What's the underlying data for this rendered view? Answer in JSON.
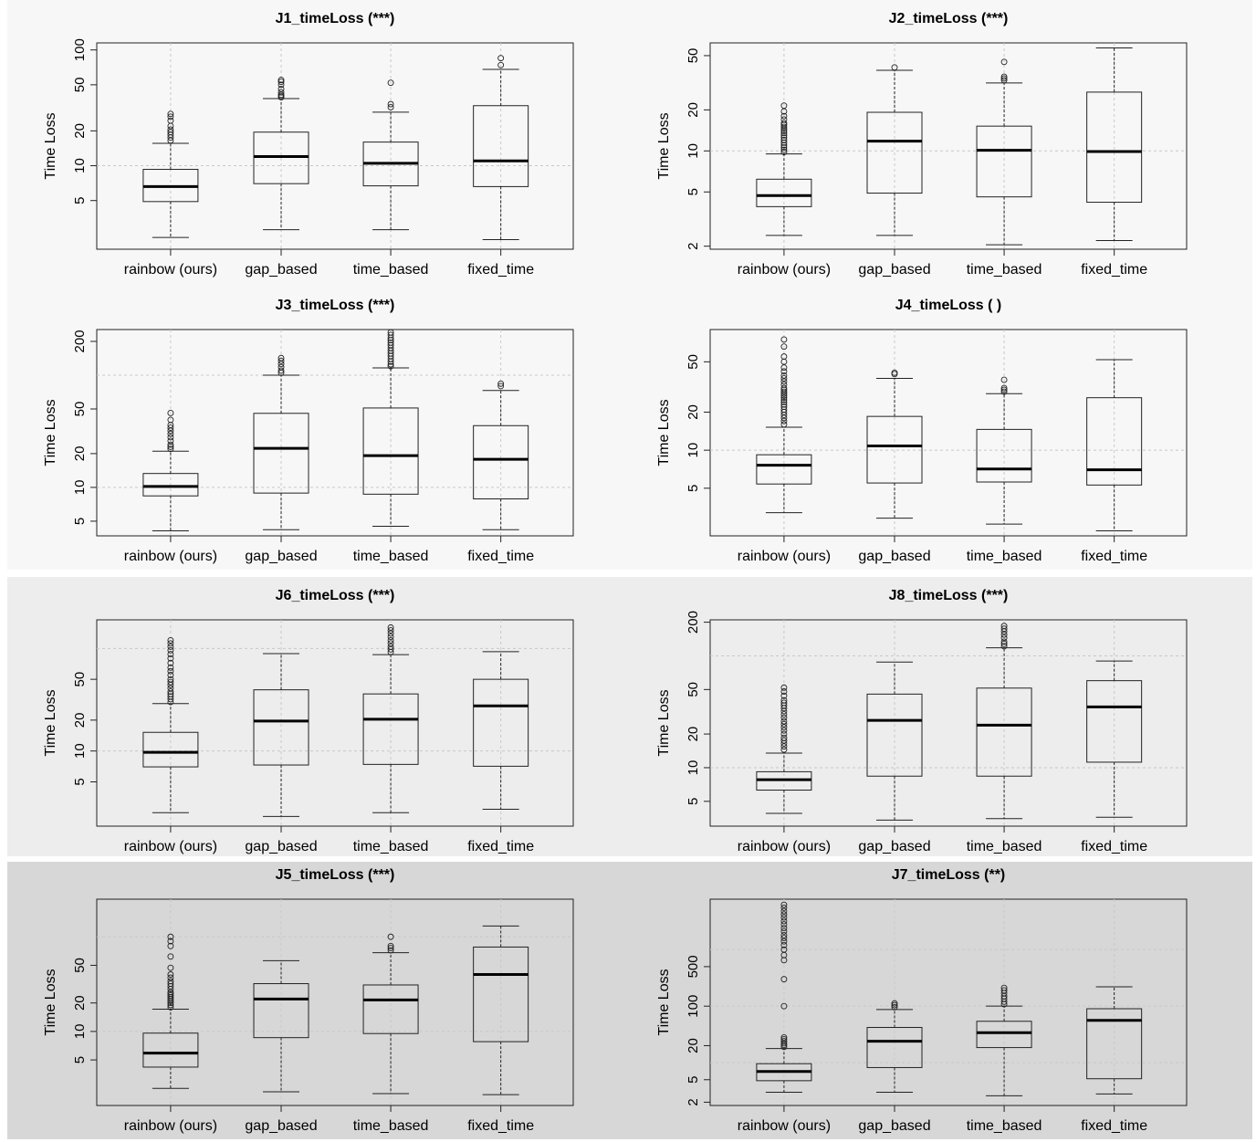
{
  "figure": {
    "ylabel": "Time Loss",
    "categories": [
      "rainbow (ours)",
      "gap_based",
      "time_based",
      "fixed_time"
    ],
    "band_colors": [
      "#f7f7f7",
      "#ededed",
      "#d7d7d7"
    ]
  },
  "chart_data": [
    {
      "type": "box",
      "title": "J1_timeLoss (***)",
      "ylabel": "Time Loss",
      "categories": [
        "rainbow (ours)",
        "gap_based",
        "time_based",
        "fixed_time"
      ],
      "yscale": "log",
      "ylim": [
        1.9,
        115
      ],
      "yticks": [
        5,
        10,
        20,
        50,
        100
      ],
      "hgrid": [
        10
      ],
      "boxes": [
        {
          "whislo": 2.4,
          "q1": 4.9,
          "med": 6.6,
          "q3": 9.3,
          "whishi": 15.6,
          "outliers": [
            16.5,
            17.5,
            18.5,
            19.5,
            20.5,
            22,
            24.5,
            26.5,
            28
          ]
        },
        {
          "whislo": 2.8,
          "q1": 7.0,
          "med": 12.0,
          "q3": 19.5,
          "whishi": 38,
          "outliers": [
            39,
            40,
            41,
            43,
            46,
            50,
            53,
            55
          ]
        },
        {
          "whislo": 2.8,
          "q1": 6.7,
          "med": 10.5,
          "q3": 16.0,
          "whishi": 29,
          "outliers": [
            32,
            34,
            52
          ]
        },
        {
          "whislo": 2.3,
          "q1": 6.6,
          "med": 11.0,
          "q3": 33,
          "whishi": 68,
          "outliers": [
            74,
            85
          ]
        }
      ]
    },
    {
      "type": "box",
      "title": "J2_timeLoss (***)",
      "ylabel": "Time Loss",
      "categories": [
        "rainbow (ours)",
        "gap_based",
        "time_based",
        "fixed_time"
      ],
      "yscale": "log",
      "ylim": [
        1.9,
        62
      ],
      "yticks": [
        2,
        5,
        10,
        20,
        50
      ],
      "hgrid": [
        10
      ],
      "boxes": [
        {
          "whislo": 2.4,
          "q1": 3.9,
          "med": 4.7,
          "q3": 6.2,
          "whishi": 9.5,
          "outliers": [
            9.8,
            10.2,
            10.6,
            11,
            11.5,
            12,
            12.5,
            13,
            13.5,
            14,
            14.5,
            15,
            15.5,
            16,
            17,
            18,
            19.5,
            21.5
          ]
        },
        {
          "whislo": 2.4,
          "q1": 4.9,
          "med": 11.8,
          "q3": 19.2,
          "whishi": 39,
          "outliers": [
            41
          ]
        },
        {
          "whislo": 2.05,
          "q1": 4.6,
          "med": 10.1,
          "q3": 15.2,
          "whishi": 31.5,
          "outliers": [
            33,
            34,
            35,
            45
          ]
        },
        {
          "whislo": 2.2,
          "q1": 4.2,
          "med": 9.9,
          "q3": 27,
          "whishi": 57,
          "outliers": []
        }
      ]
    },
    {
      "type": "box",
      "title": "J3_timeLoss (***)",
      "ylabel": "Time Loss",
      "categories": [
        "rainbow (ours)",
        "gap_based",
        "time_based",
        "fixed_time"
      ],
      "yscale": "log",
      "ylim": [
        3.7,
        255
      ],
      "yticks": [
        5,
        10,
        20,
        50,
        200
      ],
      "hgrid": [
        10,
        100
      ],
      "boxes": [
        {
          "whislo": 4.1,
          "q1": 8.4,
          "med": 10.2,
          "q3": 13.3,
          "whishi": 21,
          "outliers": [
            22,
            23,
            24,
            26,
            28,
            30,
            32,
            34,
            36,
            40,
            46
          ]
        },
        {
          "whislo": 4.2,
          "q1": 8.9,
          "med": 22.3,
          "q3": 45.7,
          "whishi": 100,
          "outliers": [
            105,
            110,
            118,
            126,
            134,
            142
          ]
        },
        {
          "whislo": 4.5,
          "q1": 8.7,
          "med": 19.2,
          "q3": 51,
          "whishi": 116,
          "outliers": [
            120,
            125,
            132,
            140,
            148,
            156,
            165,
            175,
            185,
            195,
            205,
            215,
            228,
            240
          ]
        },
        {
          "whislo": 4.2,
          "q1": 7.9,
          "med": 17.8,
          "q3": 35.5,
          "whishi": 73,
          "outliers": [
            80,
            84
          ]
        }
      ]
    },
    {
      "type": "box",
      "title": "J4_timeLoss ( )",
      "ylabel": "Time Loss",
      "categories": [
        "rainbow (ours)",
        "gap_based",
        "time_based",
        "fixed_time"
      ],
      "yscale": "log",
      "ylim": [
        2.1,
        90
      ],
      "yticks": [
        5,
        10,
        20,
        50
      ],
      "hgrid": [
        10
      ],
      "boxes": [
        {
          "whislo": 3.2,
          "q1": 5.4,
          "med": 7.6,
          "q3": 9.2,
          "whishi": 15.2,
          "outliers": [
            16,
            17,
            18,
            19,
            20,
            21,
            22,
            23,
            24,
            25,
            26,
            27,
            28,
            29,
            30,
            31,
            33,
            35,
            37,
            39,
            42,
            45,
            50,
            55,
            66,
            75
          ]
        },
        {
          "whislo": 2.9,
          "q1": 5.5,
          "med": 10.8,
          "q3": 18.5,
          "whishi": 37,
          "outliers": [
            40,
            41
          ]
        },
        {
          "whislo": 2.6,
          "q1": 5.6,
          "med": 7.1,
          "q3": 14.6,
          "whishi": 28,
          "outliers": [
            29,
            30,
            31,
            36
          ]
        },
        {
          "whislo": 2.3,
          "q1": 5.3,
          "med": 7.0,
          "q3": 26,
          "whishi": 52,
          "outliers": []
        }
      ]
    },
    {
      "type": "box",
      "title": "J6_timeLoss (***)",
      "ylabel": "Time Loss",
      "categories": [
        "rainbow (ours)",
        "gap_based",
        "time_based",
        "fixed_time"
      ],
      "yscale": "log",
      "ylim": [
        1.85,
        190
      ],
      "yticks": [
        5,
        10,
        20,
        50
      ],
      "hgrid": [
        10,
        100
      ],
      "boxes": [
        {
          "whislo": 2.5,
          "q1": 7.0,
          "med": 9.7,
          "q3": 15.2,
          "whishi": 29,
          "outliers": [
            30,
            32,
            34,
            36,
            38,
            41,
            44,
            47,
            50,
            55,
            60,
            65,
            72,
            80,
            88,
            96,
            104,
            112,
            120
          ]
        },
        {
          "whislo": 2.3,
          "q1": 7.3,
          "med": 19.6,
          "q3": 39.5,
          "whishi": 89,
          "outliers": []
        },
        {
          "whislo": 2.5,
          "q1": 7.4,
          "med": 20.4,
          "q3": 36,
          "whishi": 87,
          "outliers": [
            92,
            98,
            104,
            112,
            120,
            130,
            140,
            150,
            160
          ]
        },
        {
          "whislo": 2.7,
          "q1": 7.1,
          "med": 27.5,
          "q3": 50,
          "whishi": 93,
          "outliers": []
        }
      ]
    },
    {
      "type": "box",
      "title": "J8_timeLoss (***)",
      "ylabel": "Time Loss",
      "categories": [
        "rainbow (ours)",
        "gap_based",
        "time_based",
        "fixed_time"
      ],
      "yscale": "log",
      "ylim": [
        3.0,
        210
      ],
      "yticks": [
        5,
        10,
        20,
        50,
        200
      ],
      "hgrid": [
        10,
        100
      ],
      "boxes": [
        {
          "whislo": 3.9,
          "q1": 6.3,
          "med": 7.8,
          "q3": 9.2,
          "whishi": 13.5,
          "outliers": [
            14.5,
            15.5,
            16.5,
            17.5,
            18.5,
            20,
            21.5,
            23,
            24.5,
            26,
            28,
            30,
            32,
            34,
            36,
            38,
            40,
            44,
            48,
            52
          ]
        },
        {
          "whislo": 3.4,
          "q1": 8.4,
          "med": 26.5,
          "q3": 45.5,
          "whishi": 88,
          "outliers": []
        },
        {
          "whislo": 3.5,
          "q1": 8.4,
          "med": 24,
          "q3": 51.5,
          "whishi": 118,
          "outliers": [
            122,
            128,
            134,
            145,
            155,
            165,
            175,
            185
          ]
        },
        {
          "whislo": 3.6,
          "q1": 11.2,
          "med": 35,
          "q3": 60,
          "whishi": 90,
          "outliers": []
        }
      ]
    },
    {
      "type": "box",
      "title": "J5_timeLoss (***)",
      "ylabel": "Time Loss",
      "categories": [
        "rainbow (ours)",
        "gap_based",
        "time_based",
        "fixed_time"
      ],
      "yscale": "log",
      "ylim": [
        1.65,
        250
      ],
      "yticks": [
        5,
        10,
        20,
        50
      ],
      "hgrid": [
        10,
        100
      ],
      "boxes": [
        {
          "whislo": 2.5,
          "q1": 4.2,
          "med": 5.9,
          "q3": 9.6,
          "whishi": 17.2,
          "outliers": [
            18,
            19,
            20,
            21,
            22,
            23,
            24,
            25,
            26,
            28,
            30,
            32,
            34,
            37,
            40,
            47,
            62,
            80,
            90,
            100
          ]
        },
        {
          "whislo": 2.3,
          "q1": 8.6,
          "med": 22,
          "q3": 32,
          "whishi": 56,
          "outliers": []
        },
        {
          "whislo": 2.2,
          "q1": 9.5,
          "med": 21.5,
          "q3": 31,
          "whishi": 68,
          "outliers": [
            72,
            76,
            80,
            100
          ]
        },
        {
          "whislo": 2.15,
          "q1": 7.8,
          "med": 40,
          "q3": 78,
          "whishi": 130,
          "outliers": []
        }
      ]
    },
    {
      "type": "box",
      "title": "J7_timeLoss (**)",
      "ylabel": "Time Loss",
      "categories": [
        "rainbow (ours)",
        "gap_based",
        "time_based",
        "fixed_time"
      ],
      "yscale": "log",
      "ylim": [
        1.75,
        7800
      ],
      "yticks": [
        2,
        5,
        20,
        100,
        500
      ],
      "hgrid": [
        10,
        100,
        1000
      ],
      "boxes": [
        {
          "whislo": 3.0,
          "q1": 4.8,
          "med": 7.0,
          "q3": 9.6,
          "whishi": 17.8,
          "outliers": [
            19,
            20.5,
            22,
            24,
            26,
            28,
            100,
            300,
            650,
            800,
            1000,
            1200,
            1400,
            1600,
            1800,
            2100,
            2400,
            2800,
            3200,
            3700,
            4200,
            4800,
            5500,
            6200
          ]
        },
        {
          "whislo": 3.0,
          "q1": 8.2,
          "med": 24,
          "q3": 42,
          "whishi": 87,
          "outliers": [
            96,
            104,
            112
          ]
        },
        {
          "whislo": 2.6,
          "q1": 18.5,
          "med": 34,
          "q3": 54,
          "whishi": 100,
          "outliers": [
            108,
            120,
            135,
            150,
            170,
            190,
            210
          ]
        },
        {
          "whislo": 2.8,
          "q1": 5.2,
          "med": 56,
          "q3": 90,
          "whishi": 220,
          "outliers": []
        }
      ]
    }
  ]
}
